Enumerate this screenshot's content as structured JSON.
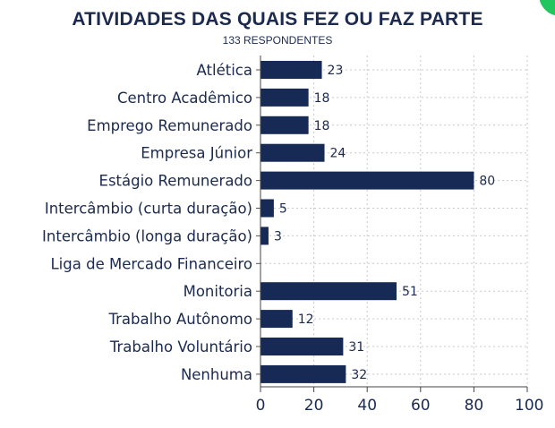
{
  "chart_data": {
    "type": "bar",
    "orientation": "horizontal",
    "title": "ATIVIDADES DAS QUAIS FEZ OU FAZ PARTE",
    "subtitle": "133 RESPONDENTES",
    "categories": [
      "Atlética",
      "Centro Acadêmico",
      "Emprego Remunerado",
      "Empresa Júnior",
      "Estágio Remunerado",
      "Intercâmbio (curta duração)",
      "Intercâmbio (longa duração)",
      "Liga de Mercado Financeiro",
      "Monitoria",
      "Trabalho Autônomo",
      "Trabalho Voluntário",
      "Nenhuma"
    ],
    "values": [
      23,
      18,
      18,
      24,
      80,
      5,
      3,
      0,
      51,
      12,
      31,
      32
    ],
    "value_labels": [
      "23",
      "18",
      "18",
      "24",
      "80",
      "5",
      "3",
      "",
      "51",
      "12",
      "31",
      "32"
    ],
    "xlim": [
      0,
      100
    ],
    "xticks": [
      0,
      20,
      40,
      60,
      80,
      100
    ],
    "grid": true,
    "bar_color": "#172a56",
    "text_color": "#1b2a4e",
    "grid_color": "#c9c9c9"
  }
}
